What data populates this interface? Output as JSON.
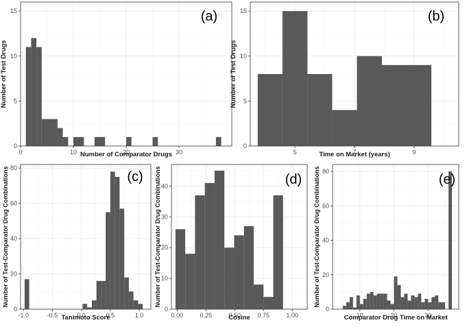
{
  "chart_data": [
    {
      "type": "bar",
      "panel_tag": "(a)",
      "xlabel": "Number of Comparator Drugs",
      "ylabel": "Number of Test Drugs",
      "xlim": [
        0,
        40
      ],
      "ylim": [
        0,
        16
      ],
      "xticks": [
        0,
        10,
        20,
        30
      ],
      "yticks": [
        0,
        5,
        10,
        15
      ],
      "grid": true,
      "bins": [
        {
          "x0": 1,
          "x1": 2,
          "value": 11
        },
        {
          "x0": 2,
          "x1": 3,
          "value": 12
        },
        {
          "x0": 3,
          "x1": 4,
          "value": 11
        },
        {
          "x0": 4,
          "x1": 7,
          "value": 3
        },
        {
          "x0": 7,
          "x1": 8,
          "value": 2
        },
        {
          "x0": 8,
          "x1": 9,
          "value": 1
        },
        {
          "x0": 10,
          "x1": 12,
          "value": 1
        },
        {
          "x0": 14,
          "x1": 16,
          "value": 1
        },
        {
          "x0": 20,
          "x1": 21,
          "value": 1
        },
        {
          "x0": 25,
          "x1": 26,
          "value": 1
        },
        {
          "x0": 37,
          "x1": 38,
          "value": 1
        }
      ]
    },
    {
      "type": "bar",
      "panel_tag": "(b)",
      "xlabel": "Time on Market (years)",
      "ylabel": "Number of Test Drugs",
      "xlim": [
        3.5,
        10.5
      ],
      "ylim": [
        0,
        16
      ],
      "xticks": [
        5,
        7,
        9
      ],
      "yticks": [
        0,
        5,
        10,
        15
      ],
      "grid": true,
      "bins": [
        {
          "x0": 3.75,
          "x1": 4.58,
          "value": 8
        },
        {
          "x0": 4.58,
          "x1": 5.42,
          "value": 15
        },
        {
          "x0": 5.42,
          "x1": 6.25,
          "value": 8
        },
        {
          "x0": 6.25,
          "x1": 7.08,
          "value": 4
        },
        {
          "x0": 7.08,
          "x1": 7.92,
          "value": 10
        },
        {
          "x0": 7.92,
          "x1": 8.75,
          "value": 9
        },
        {
          "x0": 8.75,
          "x1": 9.58,
          "value": 9
        }
      ]
    },
    {
      "type": "bar",
      "panel_tag": "(c)",
      "xlabel": "Tanimoto Score",
      "ylabel": "Number of Test-Comparator Drug Combinations",
      "xlim": [
        -1.05,
        1.2
      ],
      "ylim": [
        0,
        82
      ],
      "xticks": [
        -1.0,
        -0.5,
        0.0,
        0.5,
        1.0
      ],
      "xtick_labels": [
        "-1.0",
        "-0.5",
        "0.0",
        "0.5",
        "1.0"
      ],
      "yticks": [
        0,
        20,
        40,
        60,
        80
      ],
      "grid": true,
      "bins": [
        {
          "x0": -0.98,
          "x1": -0.9,
          "value": 17
        },
        {
          "x0": 0.02,
          "x1": 0.1,
          "value": 3
        },
        {
          "x0": 0.1,
          "x1": 0.18,
          "value": 1
        },
        {
          "x0": 0.18,
          "x1": 0.26,
          "value": 5
        },
        {
          "x0": 0.26,
          "x1": 0.34,
          "value": 16
        },
        {
          "x0": 0.34,
          "x1": 0.42,
          "value": 16
        },
        {
          "x0": 0.42,
          "x1": 0.5,
          "value": 55
        },
        {
          "x0": 0.5,
          "x1": 0.58,
          "value": 78
        },
        {
          "x0": 0.58,
          "x1": 0.66,
          "value": 75
        },
        {
          "x0": 0.66,
          "x1": 0.74,
          "value": 57
        },
        {
          "x0": 0.74,
          "x1": 0.82,
          "value": 18
        },
        {
          "x0": 0.82,
          "x1": 0.9,
          "value": 10
        },
        {
          "x0": 0.9,
          "x1": 0.98,
          "value": 5
        },
        {
          "x0": 0.98,
          "x1": 1.06,
          "value": 3
        }
      ]
    },
    {
      "type": "bar",
      "panel_tag": "(d)",
      "xlabel": "Cosine",
      "ylabel": "Number of Test-Comparator Drug Combinations",
      "xlim": [
        -0.05,
        1.13
      ],
      "ylim": [
        0,
        47
      ],
      "xticks": [
        0,
        0.25,
        0.5,
        0.75,
        1.0
      ],
      "xtick_labels": [
        "0.00",
        "0.25",
        "0.50",
        "0.75",
        "1.00"
      ],
      "yticks": [
        0,
        10,
        20,
        30,
        40
      ],
      "grid": true,
      "bins": [
        {
          "x0": -0.015,
          "x1": 0.07,
          "value": 26
        },
        {
          "x0": 0.07,
          "x1": 0.155,
          "value": 18
        },
        {
          "x0": 0.155,
          "x1": 0.24,
          "value": 37
        },
        {
          "x0": 0.24,
          "x1": 0.325,
          "value": 41
        },
        {
          "x0": 0.325,
          "x1": 0.41,
          "value": 45
        },
        {
          "x0": 0.41,
          "x1": 0.495,
          "value": 20
        },
        {
          "x0": 0.495,
          "x1": 0.58,
          "value": 24
        },
        {
          "x0": 0.58,
          "x1": 0.665,
          "value": 27
        },
        {
          "x0": 0.665,
          "x1": 0.75,
          "value": 8
        },
        {
          "x0": 0.75,
          "x1": 0.835,
          "value": 4
        },
        {
          "x0": 0.835,
          "x1": 0.92,
          "value": 37
        }
      ]
    },
    {
      "type": "bar",
      "panel_tag": "(e)",
      "xlabel": "Comparator Drug Time on Market",
      "ylabel": "Number of Test-Comparator Drug Combinations",
      "xlim": [
        2,
        39
      ],
      "ylim": [
        0,
        84
      ],
      "xticks": [
        10,
        20,
        30
      ],
      "yticks": [
        0,
        20,
        40,
        60,
        80
      ],
      "grid": true,
      "bins": [
        {
          "x0": 5,
          "x1": 6,
          "value": 2
        },
        {
          "x0": 6,
          "x1": 7,
          "value": 4
        },
        {
          "x0": 7,
          "x1": 8,
          "value": 7
        },
        {
          "x0": 8,
          "x1": 9,
          "value": 1
        },
        {
          "x0": 9,
          "x1": 10,
          "value": 8
        },
        {
          "x0": 10,
          "x1": 11,
          "value": 3
        },
        {
          "x0": 11,
          "x1": 12,
          "value": 6
        },
        {
          "x0": 12,
          "x1": 13,
          "value": 9
        },
        {
          "x0": 13,
          "x1": 14,
          "value": 10
        },
        {
          "x0": 14,
          "x1": 15,
          "value": 8
        },
        {
          "x0": 15,
          "x1": 16,
          "value": 9
        },
        {
          "x0": 16,
          "x1": 17,
          "value": 9
        },
        {
          "x0": 17,
          "x1": 18,
          "value": 9
        },
        {
          "x0": 18,
          "x1": 19,
          "value": 5
        },
        {
          "x0": 19,
          "x1": 20,
          "value": 3
        },
        {
          "x0": 20,
          "x1": 21,
          "value": 19
        },
        {
          "x0": 21,
          "x1": 22,
          "value": 14
        },
        {
          "x0": 22,
          "x1": 23,
          "value": 7
        },
        {
          "x0": 23,
          "x1": 24,
          "value": 9
        },
        {
          "x0": 24,
          "x1": 25,
          "value": 5
        },
        {
          "x0": 25,
          "x1": 26,
          "value": 8
        },
        {
          "x0": 26,
          "x1": 27,
          "value": 7
        },
        {
          "x0": 27,
          "x1": 28,
          "value": 9
        },
        {
          "x0": 28,
          "x1": 29,
          "value": 4
        },
        {
          "x0": 29,
          "x1": 30,
          "value": 6
        },
        {
          "x0": 30,
          "x1": 31,
          "value": 4
        },
        {
          "x0": 31,
          "x1": 32,
          "value": 7
        },
        {
          "x0": 32,
          "x1": 33,
          "value": 8
        },
        {
          "x0": 33,
          "x1": 34,
          "value": 4
        },
        {
          "x0": 34,
          "x1": 35,
          "value": 4
        },
        {
          "x0": 36,
          "x1": 37,
          "value": 80
        }
      ]
    }
  ]
}
